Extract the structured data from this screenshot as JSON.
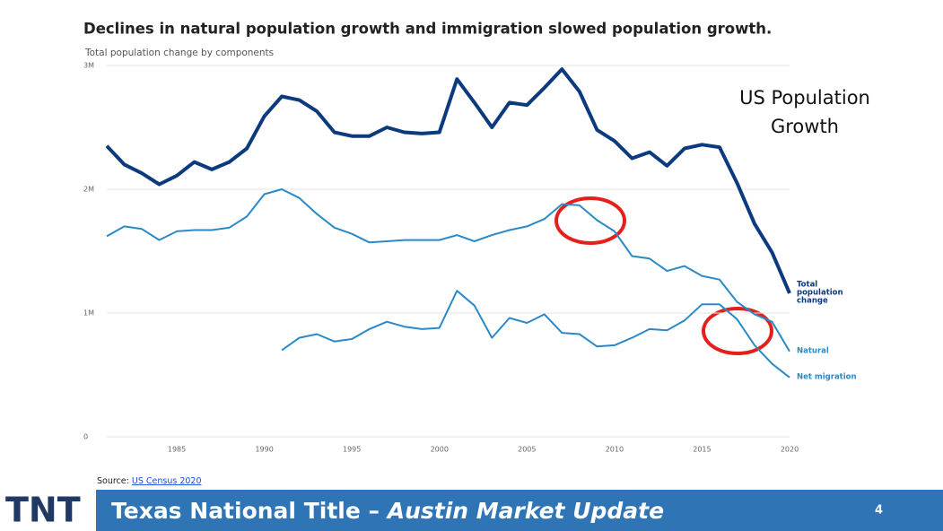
{
  "chart_data": {
    "type": "line",
    "title": "Declines in natural population growth and immigration slowed population growth.",
    "subtitle": "Total population change by components",
    "x": [
      1981,
      1982,
      1983,
      1984,
      1985,
      1986,
      1987,
      1988,
      1989,
      1990,
      1991,
      1992,
      1993,
      1994,
      1995,
      1996,
      1997,
      1998,
      1999,
      2000,
      2001,
      2002,
      2003,
      2004,
      2005,
      2006,
      2007,
      2008,
      2009,
      2010,
      2011,
      2012,
      2013,
      2014,
      2015,
      2016,
      2017,
      2018,
      2019,
      2020
    ],
    "xlim": [
      1981,
      2020
    ],
    "xticks": [
      1985,
      1990,
      1995,
      2000,
      2005,
      2010,
      2015,
      2020
    ],
    "ylim": [
      0,
      3000000
    ],
    "yticks": [
      0,
      {
        "value": 1000000,
        "label": "1M"
      },
      {
        "value": 2000000,
        "label": "2M"
      },
      {
        "value": 3000000,
        "label": "3M"
      }
    ],
    "grid": true,
    "series": [
      {
        "name": "Total population change",
        "color": "#0b3a7e",
        "values": [
          2350000,
          2200000,
          2130000,
          2040000,
          2110000,
          2220000,
          2160000,
          2220000,
          2330000,
          2590000,
          2750000,
          2720000,
          2630000,
          2460000,
          2430000,
          2430000,
          2500000,
          2460000,
          2450000,
          2460000,
          2890000,
          2700000,
          2500000,
          2700000,
          2680000,
          2820000,
          2970000,
          2790000,
          2480000,
          2390000,
          2250000,
          2300000,
          2190000,
          2330000,
          2360000,
          2340000,
          2050000,
          1720000,
          1490000,
          1160000
        ]
      },
      {
        "name": "Natural",
        "color": "#2a8ac8",
        "values": [
          1620000,
          1700000,
          1680000,
          1590000,
          1660000,
          1670000,
          1670000,
          1690000,
          1780000,
          1960000,
          2000000,
          1930000,
          1800000,
          1690000,
          1640000,
          1570000,
          1580000,
          1590000,
          1590000,
          1590000,
          1630000,
          1580000,
          1630000,
          1670000,
          1700000,
          1760000,
          1880000,
          1870000,
          1750000,
          1660000,
          1460000,
          1440000,
          1340000,
          1380000,
          1300000,
          1270000,
          1090000,
          990000,
          930000,
          690000
        ]
      },
      {
        "name": "Net migration",
        "color": "#2a8ac8",
        "values": [
          null,
          null,
          null,
          null,
          null,
          null,
          null,
          null,
          null,
          null,
          700000,
          800000,
          830000,
          770000,
          790000,
          870000,
          930000,
          890000,
          870000,
          880000,
          1180000,
          1060000,
          800000,
          960000,
          920000,
          990000,
          840000,
          830000,
          730000,
          740000,
          800000,
          870000,
          860000,
          940000,
          1070000,
          1070000,
          950000,
          740000,
          590000,
          480000
        ]
      }
    ],
    "annotation": "US Population Growth"
  },
  "source": {
    "label": "Source:",
    "link": "US Census 2020"
  },
  "footer": {
    "logo": "TNT",
    "title": "Texas National Title –",
    "subtitle": "Austin Market Update",
    "page": "4"
  }
}
